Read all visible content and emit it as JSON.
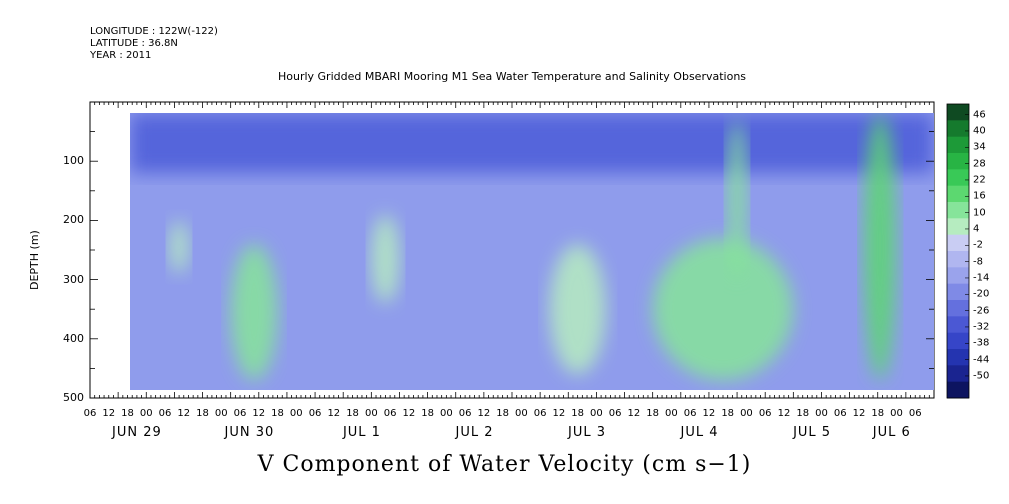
{
  "meta": {
    "longitude": "LONGITUDE : 122W(-122)",
    "latitude": "LATITUDE : 36.8N",
    "year": "YEAR : 2011"
  },
  "chart_data": {
    "type": "heatmap",
    "title": "Hourly Gridded MBARI Mooring M1 Sea Water Temperature and Salinity Observations",
    "bottom_title": "V Component of Water Velocity (cm s−1)",
    "ylabel": "DEPTH (m)",
    "y_axis": {
      "range": [
        0,
        500
      ],
      "inverted": true,
      "ticks": [
        "100",
        "200",
        "300",
        "400",
        "500"
      ]
    },
    "x_axis": {
      "range_hours": [
        0,
        180
      ],
      "hour_labels": [
        "06",
        "12",
        "18",
        "00",
        "06",
        "12",
        "18",
        "00",
        "06",
        "12",
        "18",
        "00",
        "06",
        "12",
        "18",
        "00",
        "06",
        "12",
        "18",
        "00",
        "06",
        "12",
        "18",
        "00",
        "06",
        "12",
        "18",
        "00",
        "06",
        "12",
        "18",
        "00",
        "06",
        "12",
        "18",
        "00",
        "06",
        "12",
        "18",
        "00",
        "06",
        "12",
        "18",
        "00",
        "06"
      ],
      "day_labels": [
        "JUN 29",
        "JUN 30",
        "JUL  1",
        "JUL  2",
        "JUL  3",
        "JUL  4",
        "JUL  5",
        "JUL  6"
      ]
    },
    "colorbar": {
      "labels": [
        "46",
        "40",
        "34",
        "28",
        "22",
        "16",
        "10",
        "4",
        "-2",
        "-8",
        "-14",
        "-20",
        "-26",
        "-32",
        "-38",
        "-44",
        "-50"
      ],
      "colors": [
        "#0f4a22",
        "#157a2d",
        "#1d9a38",
        "#28b444",
        "#39c957",
        "#5cd870",
        "#86e49a",
        "#b6ecc0",
        "#c9cdf3",
        "#b0b6f0",
        "#9aa3ec",
        "#7f8ae6",
        "#6470de",
        "#4b58d4",
        "#3645c8",
        "#2434b0",
        "#1a2490",
        "#0d1460"
      ]
    },
    "series": [
      {
        "z_description": "",
        "features": [
          {
            "t_start": 30,
            "t_end": 40,
            "d_start": 240,
            "d_end": 470,
            "v": 12
          },
          {
            "t_start": 17,
            "t_end": 21,
            "d_start": 200,
            "d_end": 290,
            "v": 6
          },
          {
            "t_start": 60,
            "t_end": 66,
            "d_start": 190,
            "d_end": 340,
            "v": 6
          },
          {
            "t_start": 120,
            "t_end": 150,
            "d_start": 230,
            "d_end": 470,
            "v": 10
          },
          {
            "t_start": 165,
            "t_end": 172,
            "d_start": 20,
            "d_end": 470,
            "v": 14
          },
          {
            "t_start": 98,
            "t_end": 110,
            "d_start": 240,
            "d_end": 460,
            "v": 6
          },
          {
            "t_start": 136,
            "t_end": 140,
            "d_start": 30,
            "d_end": 300,
            "v": 8
          }
        ]
      }
    ]
  }
}
